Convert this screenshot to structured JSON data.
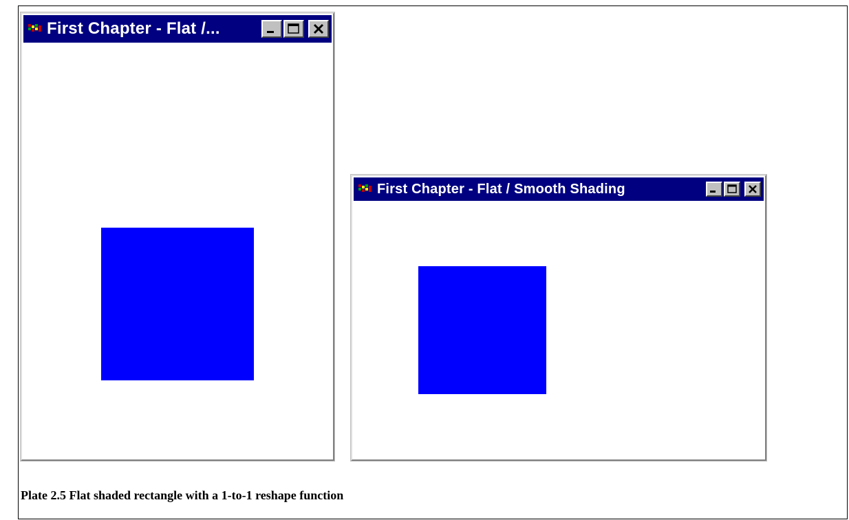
{
  "windows": [
    {
      "title": "First Chapter - Flat /...",
      "titlebar_color": "#000080",
      "shape_color": "#0000ff",
      "controls": [
        "minimize-icon",
        "maximize-icon",
        "close-icon"
      ]
    },
    {
      "title": "First Chapter - Flat / Smooth Shading",
      "titlebar_color": "#000080",
      "shape_color": "#0000ff",
      "controls": [
        "minimize-icon",
        "maximize-icon",
        "close-icon"
      ]
    }
  ],
  "caption": "Plate 2.5 Flat shaded rectangle with a 1-to-1 reshape function"
}
